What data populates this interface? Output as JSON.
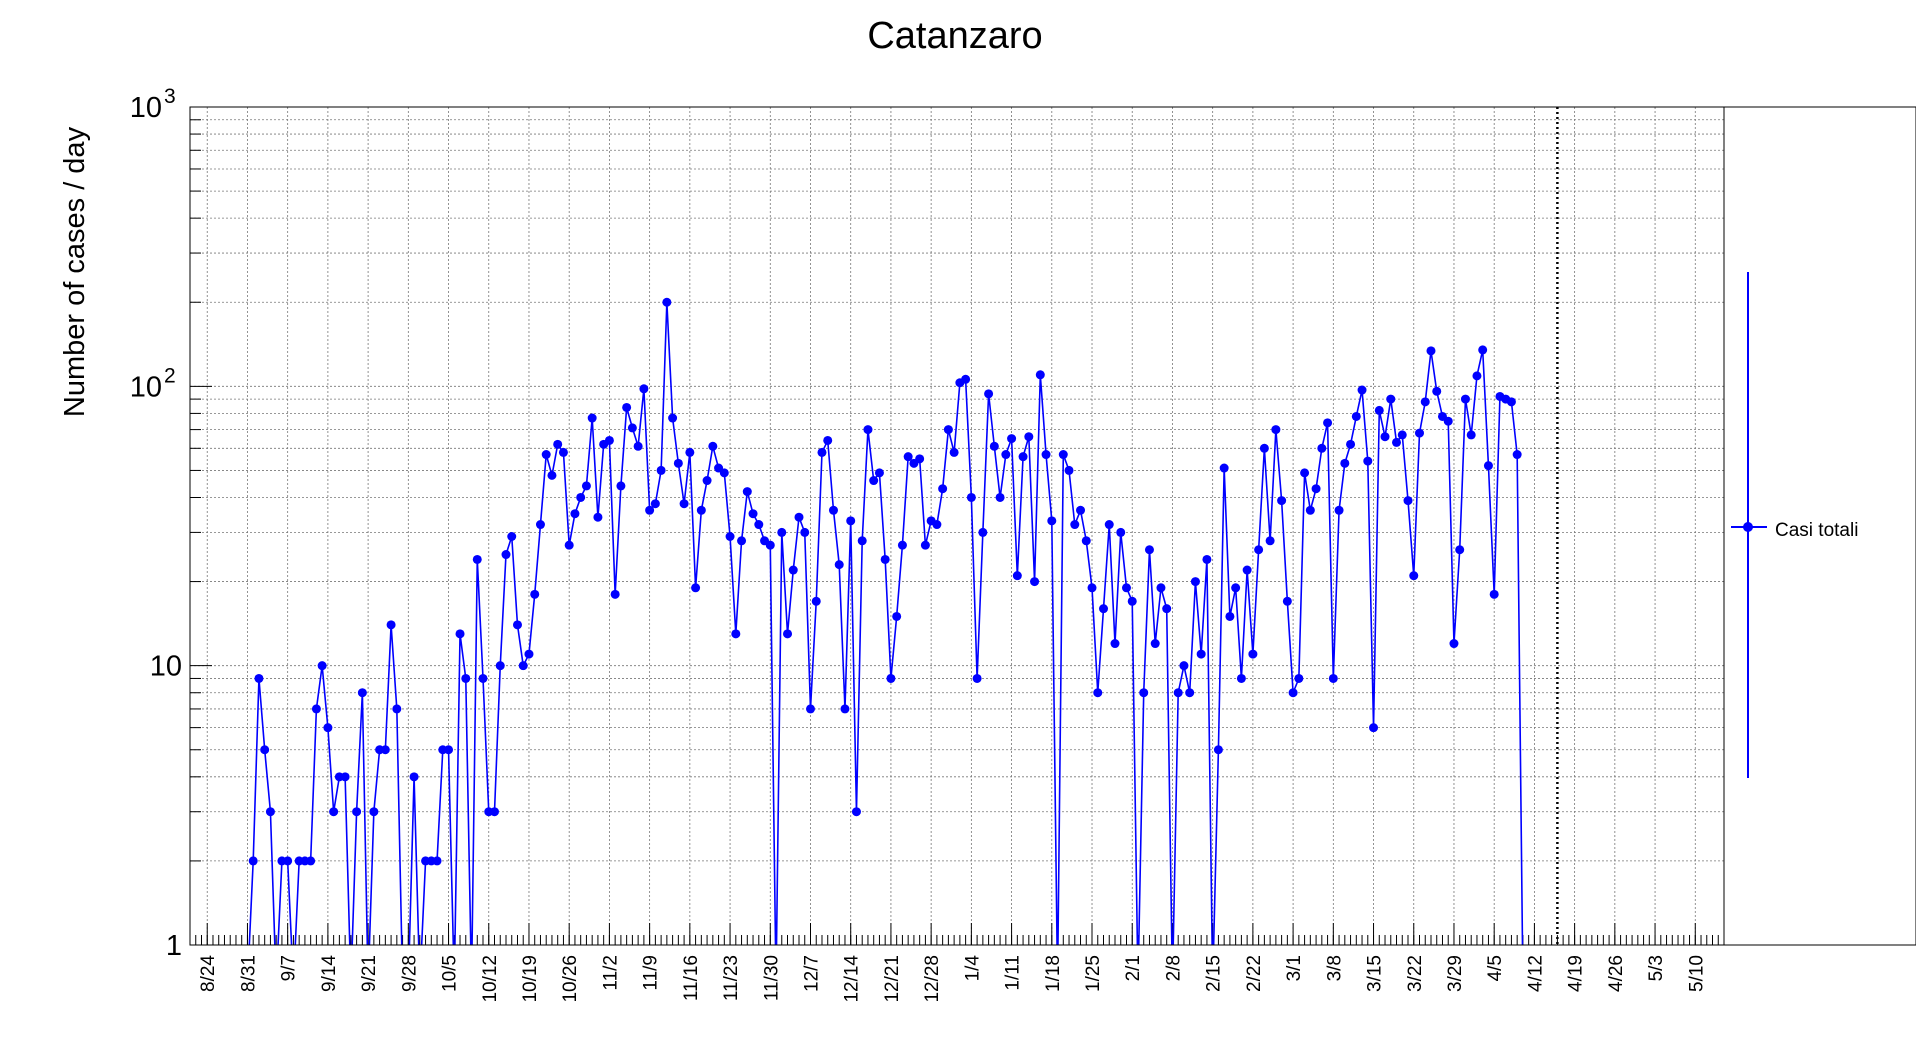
{
  "chart_data": {
    "type": "line",
    "title": "Catanzaro",
    "xlabel": "",
    "ylabel": "Number of cases / day",
    "yscale": "log",
    "ylim": [
      1,
      1000
    ],
    "xlim": [
      "2020-08-21",
      "2021-05-15"
    ],
    "grid": true,
    "legend": "right",
    "x_ticks": [
      "8/24",
      "8/31",
      "9/7",
      "9/14",
      "9/21",
      "9/28",
      "10/5",
      "10/12",
      "10/19",
      "10/26",
      "11/2",
      "11/9",
      "11/16",
      "11/23",
      "11/30",
      "12/7",
      "12/14",
      "12/21",
      "12/28",
      "1/4",
      "1/11",
      "1/18",
      "1/25",
      "2/1",
      "2/8",
      "2/15",
      "2/22",
      "3/1",
      "3/8",
      "3/15",
      "3/22",
      "3/29",
      "4/5",
      "4/12",
      "4/19",
      "4/26",
      "5/3",
      "5/10"
    ],
    "y_ticks": [
      {
        "value": 1,
        "label": "1"
      },
      {
        "value": 10,
        "label": "10"
      },
      {
        "value": 100,
        "label": "10",
        "sup": "2"
      },
      {
        "value": 1000,
        "label": "10",
        "sup": "3"
      }
    ],
    "vline": "2021-04-16",
    "series": [
      {
        "name": "Casi totali",
        "color": "#0000ff",
        "start": "2020-08-30",
        "values": [
          0,
          0,
          2,
          9,
          5,
          3,
          0,
          2,
          2,
          0,
          2,
          2,
          2,
          7,
          10,
          6,
          3,
          4,
          4,
          0,
          3,
          8,
          0,
          3,
          5,
          5,
          14,
          7,
          0,
          0,
          4,
          0,
          2,
          2,
          2,
          5,
          5,
          0,
          13,
          9,
          0,
          24,
          9,
          3,
          3,
          10,
          25,
          29,
          14,
          10,
          11,
          18,
          32,
          57,
          48,
          62,
          58,
          27,
          35,
          40,
          44,
          77,
          34,
          62,
          64,
          18,
          44,
          84,
          71,
          61,
          98,
          36,
          38,
          50,
          200,
          77,
          53,
          38,
          58,
          19,
          36,
          46,
          61,
          51,
          49,
          29,
          13,
          28,
          42,
          35,
          32,
          28,
          27,
          0,
          30,
          13,
          22,
          34,
          30,
          7,
          17,
          58,
          64,
          36,
          23,
          7,
          33,
          3,
          28,
          70,
          46,
          49,
          24,
          9,
          15,
          27,
          56,
          53,
          55,
          27,
          33,
          32,
          43,
          70,
          58,
          103,
          106,
          40,
          9,
          30,
          94,
          61,
          40,
          57,
          65,
          21,
          56,
          66,
          20,
          110,
          57,
          33,
          0,
          57,
          50,
          32,
          36,
          28,
          19,
          8,
          16,
          32,
          12,
          30,
          19,
          17,
          0,
          8,
          26,
          12,
          19,
          16,
          0,
          8,
          10,
          8,
          20,
          11,
          24,
          0,
          5,
          51,
          15,
          19,
          9,
          22,
          11,
          26,
          60,
          28,
          70,
          39,
          17,
          8,
          9,
          49,
          36,
          43,
          60,
          74,
          9,
          36,
          53,
          62,
          78,
          97,
          54,
          6,
          82,
          66,
          90,
          63,
          67,
          39,
          21,
          68,
          88,
          134,
          96,
          78,
          75,
          12,
          26,
          90,
          67,
          109,
          135,
          52,
          18,
          92,
          90,
          88,
          57,
          0
        ]
      }
    ]
  }
}
